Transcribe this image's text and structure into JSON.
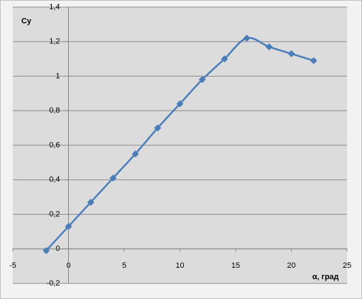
{
  "chart_data": {
    "type": "line",
    "y_label": "Cy",
    "x_label": "α, град",
    "x": [
      -2,
      0,
      2,
      4,
      6,
      8,
      10,
      12,
      14,
      16,
      18,
      20,
      22
    ],
    "series": [
      {
        "name": "Cy",
        "color": "#4a7ebb",
        "values": [
          -0.01,
          0.13,
          0.27,
          0.41,
          0.55,
          0.7,
          0.84,
          0.98,
          1.1,
          1.22,
          1.17,
          1.13,
          1.09
        ]
      }
    ],
    "xlim": [
      -5,
      25
    ],
    "xticks": [
      -5,
      0,
      5,
      10,
      15,
      20,
      25
    ],
    "ylim": [
      -0.2,
      1.4
    ],
    "yticks": [
      {
        "value": -0.2,
        "label": "-0,2"
      },
      0,
      {
        "value": 0.2,
        "label": "0,2"
      },
      {
        "value": 0.4,
        "label": "0,4"
      },
      {
        "value": 0.6,
        "label": "0,6"
      },
      {
        "value": 0.8,
        "label": "0,8"
      },
      1,
      {
        "value": 1.2,
        "label": "1,2"
      },
      {
        "value": 1.4,
        "label": "1,4"
      }
    ],
    "grid": true,
    "smooth": true
  }
}
